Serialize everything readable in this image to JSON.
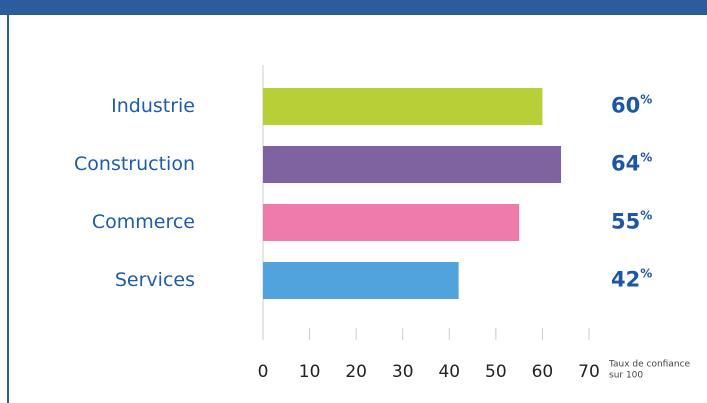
{
  "chart_data": {
    "type": "barh",
    "categories": [
      "Industrie",
      "Construction",
      "Commerce",
      "Services"
    ],
    "values": [
      60,
      64,
      55,
      42
    ],
    "value_labels": [
      "60%",
      "64%",
      "55%",
      "42%"
    ],
    "colors": [
      "#b9cf37",
      "#7e63a0",
      "#ef7bab",
      "#50a3dc"
    ],
    "xlim": [
      0,
      70
    ],
    "xticks": [
      0,
      10,
      20,
      30,
      40,
      50,
      60,
      70
    ],
    "note": [
      "Taux de confiance",
      "sur 100"
    ]
  }
}
